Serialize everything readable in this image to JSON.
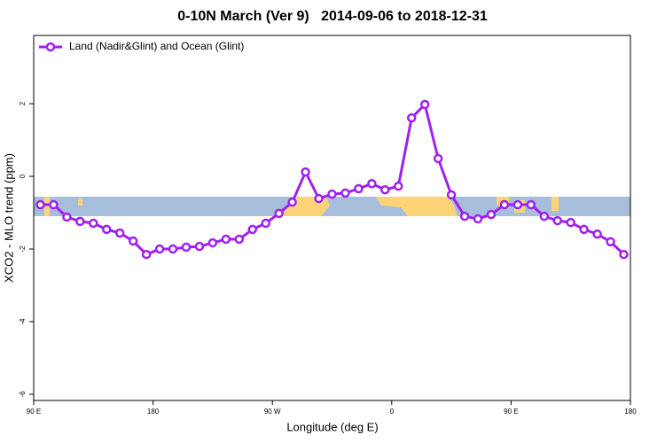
{
  "chart_data": {
    "type": "line",
    "title": "0-10N March (Ver 9)   2014-09-06 to 2018-12-31",
    "x_label": "Longitude (deg E)",
    "y_label": "XCO2 - MLO trend (ppm)",
    "legend_position": "top-left",
    "x": [
      95,
      105,
      115,
      125,
      135,
      145,
      155,
      165,
      175,
      185,
      195,
      205,
      215,
      225,
      235,
      245,
      255,
      265,
      275,
      285,
      295,
      305,
      315,
      325,
      335,
      345,
      355,
      365,
      375,
      385,
      395,
      405,
      415,
      425,
      435,
      445,
      455,
      465,
      475,
      485,
      495,
      505,
      515,
      525,
      535
    ],
    "series": [
      {
        "name": "Land (Nadir&Glint) and Ocean (Glint)",
        "color": "#a020f0",
        "values": [
          -0.78,
          -0.78,
          -1.12,
          -1.24,
          -1.29,
          -1.46,
          -1.56,
          -1.78,
          -2.15,
          -2.0,
          -2.0,
          -1.95,
          -1.93,
          -1.83,
          -1.73,
          -1.73,
          -1.46,
          -1.29,
          -1.02,
          -0.71,
          0.12,
          -0.61,
          -0.49,
          -0.46,
          -0.34,
          -0.2,
          -0.37,
          -0.27,
          1.61,
          1.98,
          0.49,
          -0.51,
          -1.1,
          -1.17,
          -1.05,
          -0.78,
          -0.78,
          -0.78,
          -1.1,
          -1.22,
          -1.27,
          -1.46,
          -1.59,
          -1.8,
          -2.15
        ]
      }
    ],
    "xlim": [
      90,
      540
    ],
    "xticks": [
      {
        "value": 90,
        "label": "90 E"
      },
      180,
      {
        "value": 270,
        "label": "90 W"
      },
      {
        "value": 360,
        "label": "0"
      },
      {
        "value": 450,
        "label": "90 E"
      },
      {
        "value": 540,
        "label": "180"
      }
    ],
    "ylim": [
      -6.17,
      3.88
    ],
    "yticks": [
      -6,
      -4,
      -2,
      0,
      2
    ]
  }
}
